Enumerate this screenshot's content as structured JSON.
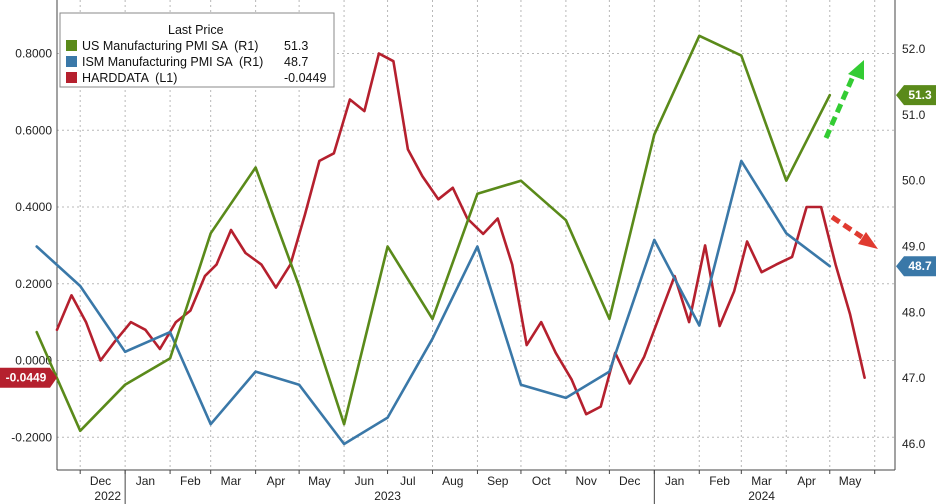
{
  "chart_data": {
    "type": "line",
    "legend": {
      "title": "Last Price",
      "entries": [
        {
          "name": "US Manufacturing PMI SA  (R1)",
          "last": "51.3",
          "color": "#5a8a1a"
        },
        {
          "name": "ISM Manufacturing PMI SA  (R1)",
          "last": "48.7",
          "color": "#3a78a8"
        },
        {
          "name": "HARDDATA  (L1)",
          "last": "-0.0449",
          "color": "#b5202e"
        }
      ],
      "placement": "top-left"
    },
    "left_axis": {
      "ticks": [
        "0.8000",
        "0.6000",
        "0.4000",
        "0.2000",
        "0.0000",
        "-0.2000"
      ],
      "ylim": [
        -0.2,
        0.8
      ]
    },
    "right_axis": {
      "ticks": [
        "52.0",
        "51.0",
        "50.0",
        "49.0",
        "48.0",
        "47.0",
        "46.0"
      ],
      "ylim": [
        46,
        52
      ]
    },
    "x_axis": {
      "months": [
        "Dec",
        "Jan",
        "Feb",
        "Mar",
        "Apr",
        "May",
        "Jun",
        "Jul",
        "Aug",
        "Sep",
        "Oct",
        "Nov",
        "Dec",
        "Jan",
        "Feb",
        "Mar",
        "Apr",
        "May"
      ],
      "years": [
        "2022",
        "2023",
        "2024"
      ],
      "range": [
        "2022-11-15",
        "2024-06-15"
      ]
    },
    "badges": {
      "us_pmi": "51.3",
      "ism_pmi": "48.7",
      "harddata": "-0.0449"
    },
    "series": [
      {
        "name": "US Manufacturing PMI SA",
        "axis": "right",
        "color": "#5a8a1a",
        "x": [
          "2022-11-01",
          "2022-12-01",
          "2023-01-01",
          "2023-02-01",
          "2023-03-01",
          "2023-04-01",
          "2023-05-01",
          "2023-06-01",
          "2023-07-01",
          "2023-08-01",
          "2023-09-01",
          "2023-10-01",
          "2023-11-01",
          "2023-12-01",
          "2024-01-01",
          "2024-02-01",
          "2024-03-01",
          "2024-04-01",
          "2024-05-01"
        ],
        "y": [
          47.7,
          46.2,
          46.9,
          47.3,
          49.2,
          50.2,
          48.4,
          46.3,
          49.0,
          47.9,
          49.8,
          50.0,
          49.4,
          47.9,
          50.7,
          52.2,
          51.9,
          50.0,
          51.3
        ]
      },
      {
        "name": "ISM Manufacturing PMI SA",
        "axis": "right",
        "color": "#3a78a8",
        "x": [
          "2022-11-01",
          "2022-12-01",
          "2023-01-01",
          "2023-02-01",
          "2023-03-01",
          "2023-04-01",
          "2023-05-01",
          "2023-06-01",
          "2023-07-01",
          "2023-08-01",
          "2023-09-01",
          "2023-10-01",
          "2023-11-01",
          "2023-12-01",
          "2024-01-01",
          "2024-02-01",
          "2024-03-01",
          "2024-04-01",
          "2024-05-01"
        ],
        "y": [
          49.0,
          48.4,
          47.4,
          47.7,
          46.3,
          47.1,
          46.9,
          46.0,
          46.4,
          47.6,
          49.0,
          46.9,
          46.7,
          47.1,
          49.1,
          47.8,
          50.3,
          49.2,
          48.7
        ]
      },
      {
        "name": "HARDDATA",
        "axis": "left",
        "color": "#b5202e",
        "x": [
          "2022-11-15",
          "2022-11-25",
          "2022-12-05",
          "2022-12-15",
          "2022-12-25",
          "2023-01-05",
          "2023-01-15",
          "2023-01-25",
          "2023-02-05",
          "2023-02-15",
          "2023-02-25",
          "2023-03-05",
          "2023-03-15",
          "2023-03-25",
          "2023-04-05",
          "2023-04-15",
          "2023-04-25",
          "2023-05-05",
          "2023-05-15",
          "2023-05-25",
          "2023-06-05",
          "2023-06-15",
          "2023-06-25",
          "2023-07-05",
          "2023-07-15",
          "2023-07-25",
          "2023-08-05",
          "2023-08-15",
          "2023-08-25",
          "2023-09-05",
          "2023-09-15",
          "2023-09-25",
          "2023-10-05",
          "2023-10-15",
          "2023-10-25",
          "2023-11-05",
          "2023-11-15",
          "2023-11-25",
          "2023-12-05",
          "2023-12-15",
          "2023-12-25",
          "2024-01-05",
          "2024-01-15",
          "2024-01-25",
          "2024-02-05",
          "2024-02-15",
          "2024-02-25",
          "2024-03-05",
          "2024-03-15",
          "2024-03-25",
          "2024-04-05",
          "2024-04-15",
          "2024-04-25",
          "2024-05-05",
          "2024-05-15",
          "2024-05-25"
        ],
        "y": [
          0.08,
          0.17,
          0.1,
          0.0,
          0.05,
          0.1,
          0.08,
          0.03,
          0.1,
          0.13,
          0.22,
          0.25,
          0.34,
          0.28,
          0.25,
          0.19,
          0.25,
          0.38,
          0.52,
          0.54,
          0.68,
          0.65,
          0.8,
          0.78,
          0.55,
          0.48,
          0.42,
          0.45,
          0.37,
          0.33,
          0.37,
          0.25,
          0.04,
          0.1,
          0.02,
          -0.05,
          -0.14,
          -0.12,
          0.02,
          -0.06,
          0.01,
          0.12,
          0.22,
          0.1,
          0.3,
          0.09,
          0.18,
          0.31,
          0.23,
          0.25,
          0.27,
          0.4,
          0.4,
          0.25,
          0.12,
          -0.0449
        ]
      }
    ],
    "annotations": [
      {
        "type": "arrow",
        "direction": "up",
        "color": "#33cc33"
      },
      {
        "type": "arrow",
        "direction": "down",
        "color": "#e03a30"
      }
    ],
    "grid": true
  }
}
